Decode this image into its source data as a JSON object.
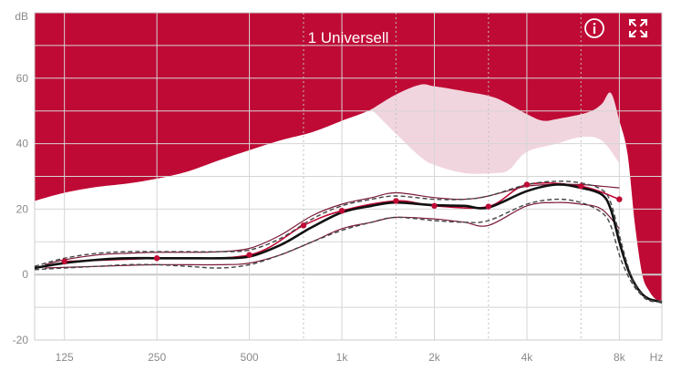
{
  "colors": {
    "accent": "#bf0a35",
    "target_band": "#f1d5de",
    "white": "#ffffff",
    "grid": "#d5d5d5",
    "curve_measured": "#bf0a35",
    "curve_main": "#111111",
    "curve_dashed": "#444444"
  },
  "header": {
    "program_title": "1 Universell",
    "info_icon": "info-circle-icon",
    "expand_icon": "expand-arrows-icon"
  },
  "chart_data": {
    "type": "line",
    "title": "1 Universell",
    "y_unit": "dB",
    "x_unit": "Hz",
    "xscale": "log",
    "xlim": [
      100,
      11000
    ],
    "ylim": [
      -20,
      80
    ],
    "grid": true,
    "x_ticks": [
      {
        "value": 125,
        "label": "125"
      },
      {
        "value": 250,
        "label": "250"
      },
      {
        "value": 500,
        "label": "500"
      },
      {
        "value": 1000,
        "label": "1k"
      },
      {
        "value": 2000,
        "label": "2k"
      },
      {
        "value": 4000,
        "label": "4k"
      },
      {
        "value": 8000,
        "label": "8k"
      }
    ],
    "x_minor_ticks": [
      750,
      1500,
      3000,
      6000
    ],
    "y_ticks": [
      {
        "value": 60,
        "label": "60"
      },
      {
        "value": 40,
        "label": "40"
      },
      {
        "value": 20,
        "label": "20"
      },
      {
        "value": 0,
        "label": "0"
      },
      {
        "value": -20,
        "label": "-20"
      }
    ],
    "y_minor_ticks": [
      70,
      50,
      30,
      10,
      -10
    ],
    "upper_region": [
      [
        100,
        22.5
      ],
      [
        125,
        25
      ],
      [
        160,
        26.8
      ],
      [
        200,
        27.8
      ],
      [
        250,
        29.3
      ],
      [
        315,
        31.5
      ],
      [
        400,
        35
      ],
      [
        500,
        38
      ],
      [
        630,
        41
      ],
      [
        800,
        43.5
      ],
      [
        1000,
        47
      ],
      [
        1250,
        50.5
      ],
      [
        1500,
        55
      ],
      [
        1800,
        58
      ],
      [
        2000,
        57.5
      ],
      [
        2500,
        56
      ],
      [
        3150,
        54
      ],
      [
        4000,
        49
      ],
      [
        4500,
        47
      ],
      [
        5000,
        47.5
      ],
      [
        6300,
        49.5
      ],
      [
        7000,
        52
      ],
      [
        7500,
        55.5
      ],
      [
        8000,
        47
      ],
      [
        8500,
        37
      ],
      [
        9000,
        15
      ],
      [
        9500,
        0
      ],
      [
        10000,
        -5
      ],
      [
        10500,
        -7.5
      ],
      [
        11000,
        -8
      ]
    ],
    "target_band": {
      "upper": [
        [
          1250,
          50.5
        ],
        [
          1500,
          55
        ],
        [
          1800,
          58
        ],
        [
          2000,
          57.5
        ],
        [
          2500,
          56
        ],
        [
          3150,
          54
        ],
        [
          4000,
          49
        ],
        [
          4500,
          47
        ],
        [
          5000,
          47.5
        ],
        [
          6300,
          49.5
        ],
        [
          7000,
          52
        ],
        [
          7500,
          55.5
        ],
        [
          8000,
          47
        ]
      ],
      "lower": [
        [
          1250,
          50.5
        ],
        [
          1500,
          43
        ],
        [
          1800,
          36
        ],
        [
          2000,
          33.5
        ],
        [
          2500,
          31
        ],
        [
          3150,
          31
        ],
        [
          3500,
          32
        ],
        [
          4000,
          37.5
        ],
        [
          5000,
          40
        ],
        [
          6000,
          42
        ],
        [
          7000,
          41
        ],
        [
          8000,
          34
        ]
      ]
    },
    "series": [
      {
        "role": "measured",
        "style": "markers",
        "points": [
          [
            125,
            4
          ],
          [
            250,
            5
          ],
          [
            500,
            6
          ],
          [
            750,
            15
          ],
          [
            1000,
            19.5
          ],
          [
            1500,
            22.5
          ],
          [
            2000,
            21
          ],
          [
            3000,
            20.8
          ],
          [
            4000,
            27.5
          ],
          [
            6000,
            27
          ],
          [
            8000,
            23
          ]
        ]
      },
      {
        "role": "main-upper-thin",
        "style": "solid-thin",
        "points": [
          [
            108,
            3
          ],
          [
            125,
            4.5
          ],
          [
            160,
            6
          ],
          [
            200,
            6.5
          ],
          [
            250,
            6.8
          ],
          [
            315,
            6.8
          ],
          [
            400,
            7
          ],
          [
            500,
            8
          ],
          [
            630,
            12
          ],
          [
            800,
            18
          ],
          [
            1000,
            21.5
          ],
          [
            1250,
            23.5
          ],
          [
            1500,
            25
          ],
          [
            2000,
            23.5
          ],
          [
            2500,
            23
          ],
          [
            3000,
            24
          ],
          [
            4000,
            27
          ],
          [
            5000,
            27.5
          ],
          [
            6000,
            27.5
          ],
          [
            7000,
            27
          ],
          [
            8000,
            26.5
          ]
        ]
      },
      {
        "role": "main-lower-thin",
        "style": "solid-thin",
        "points": [
          [
            108,
            2
          ],
          [
            160,
            2.5
          ],
          [
            250,
            3
          ],
          [
            400,
            3
          ],
          [
            500,
            3.5
          ],
          [
            630,
            6
          ],
          [
            800,
            10
          ],
          [
            1000,
            14
          ],
          [
            1250,
            16
          ],
          [
            1500,
            17.5
          ],
          [
            2000,
            17
          ],
          [
            2500,
            16
          ],
          [
            3000,
            15
          ],
          [
            4000,
            21
          ],
          [
            5000,
            22
          ],
          [
            6000,
            21.5
          ],
          [
            7000,
            20
          ],
          [
            8000,
            14
          ]
        ]
      },
      {
        "role": "main",
        "style": "solid-thick",
        "points": [
          [
            100,
            2
          ],
          [
            125,
            3.5
          ],
          [
            160,
            4.5
          ],
          [
            200,
            5
          ],
          [
            250,
            5
          ],
          [
            315,
            5
          ],
          [
            400,
            5
          ],
          [
            500,
            5.5
          ],
          [
            630,
            9
          ],
          [
            750,
            13
          ],
          [
            800,
            14.5
          ],
          [
            1000,
            19
          ],
          [
            1250,
            21
          ],
          [
            1500,
            22
          ],
          [
            2000,
            21.2
          ],
          [
            2500,
            21
          ],
          [
            3000,
            20.5
          ],
          [
            4000,
            25.5
          ],
          [
            5000,
            27.5
          ],
          [
            6000,
            26.5
          ],
          [
            7000,
            24.5
          ],
          [
            7500,
            20
          ],
          [
            8000,
            10
          ],
          [
            8500,
            2
          ],
          [
            9000,
            -3
          ],
          [
            9500,
            -6
          ],
          [
            10000,
            -7.5
          ],
          [
            10500,
            -8
          ],
          [
            11000,
            -8.5
          ]
        ]
      },
      {
        "role": "dashed-upper",
        "style": "dashed",
        "points": [
          [
            100,
            2.5
          ],
          [
            125,
            5
          ],
          [
            160,
            6.5
          ],
          [
            200,
            7
          ],
          [
            250,
            7
          ],
          [
            315,
            7
          ],
          [
            400,
            7
          ],
          [
            500,
            7.5
          ],
          [
            630,
            11
          ],
          [
            800,
            17
          ],
          [
            1000,
            21
          ],
          [
            1250,
            23
          ],
          [
            1500,
            24
          ],
          [
            2000,
            23
          ],
          [
            2500,
            23
          ],
          [
            3000,
            24
          ],
          [
            4000,
            27.5
          ],
          [
            5000,
            28.5
          ],
          [
            6000,
            28
          ],
          [
            7000,
            26
          ],
          [
            7500,
            22
          ],
          [
            8000,
            12
          ],
          [
            8500,
            3
          ],
          [
            9000,
            -3
          ],
          [
            9500,
            -6
          ],
          [
            10000,
            -7.8
          ],
          [
            11000,
            -8.2
          ]
        ]
      },
      {
        "role": "dashed-lower",
        "style": "dashed",
        "points": [
          [
            100,
            1.5
          ],
          [
            125,
            2
          ],
          [
            160,
            2.5
          ],
          [
            200,
            3
          ],
          [
            250,
            3
          ],
          [
            315,
            2.5
          ],
          [
            400,
            2
          ],
          [
            500,
            3
          ],
          [
            630,
            6
          ],
          [
            800,
            10
          ],
          [
            1000,
            13.5
          ],
          [
            1250,
            16
          ],
          [
            1500,
            17.5
          ],
          [
            2000,
            16.5
          ],
          [
            2500,
            16
          ],
          [
            3000,
            16.5
          ],
          [
            4000,
            21.5
          ],
          [
            5000,
            23
          ],
          [
            6000,
            22
          ],
          [
            7000,
            19
          ],
          [
            7500,
            15
          ],
          [
            8000,
            6
          ],
          [
            8500,
            0
          ],
          [
            9000,
            -4
          ],
          [
            9500,
            -6.5
          ],
          [
            10000,
            -8
          ],
          [
            11000,
            -8.5
          ]
        ]
      }
    ]
  }
}
